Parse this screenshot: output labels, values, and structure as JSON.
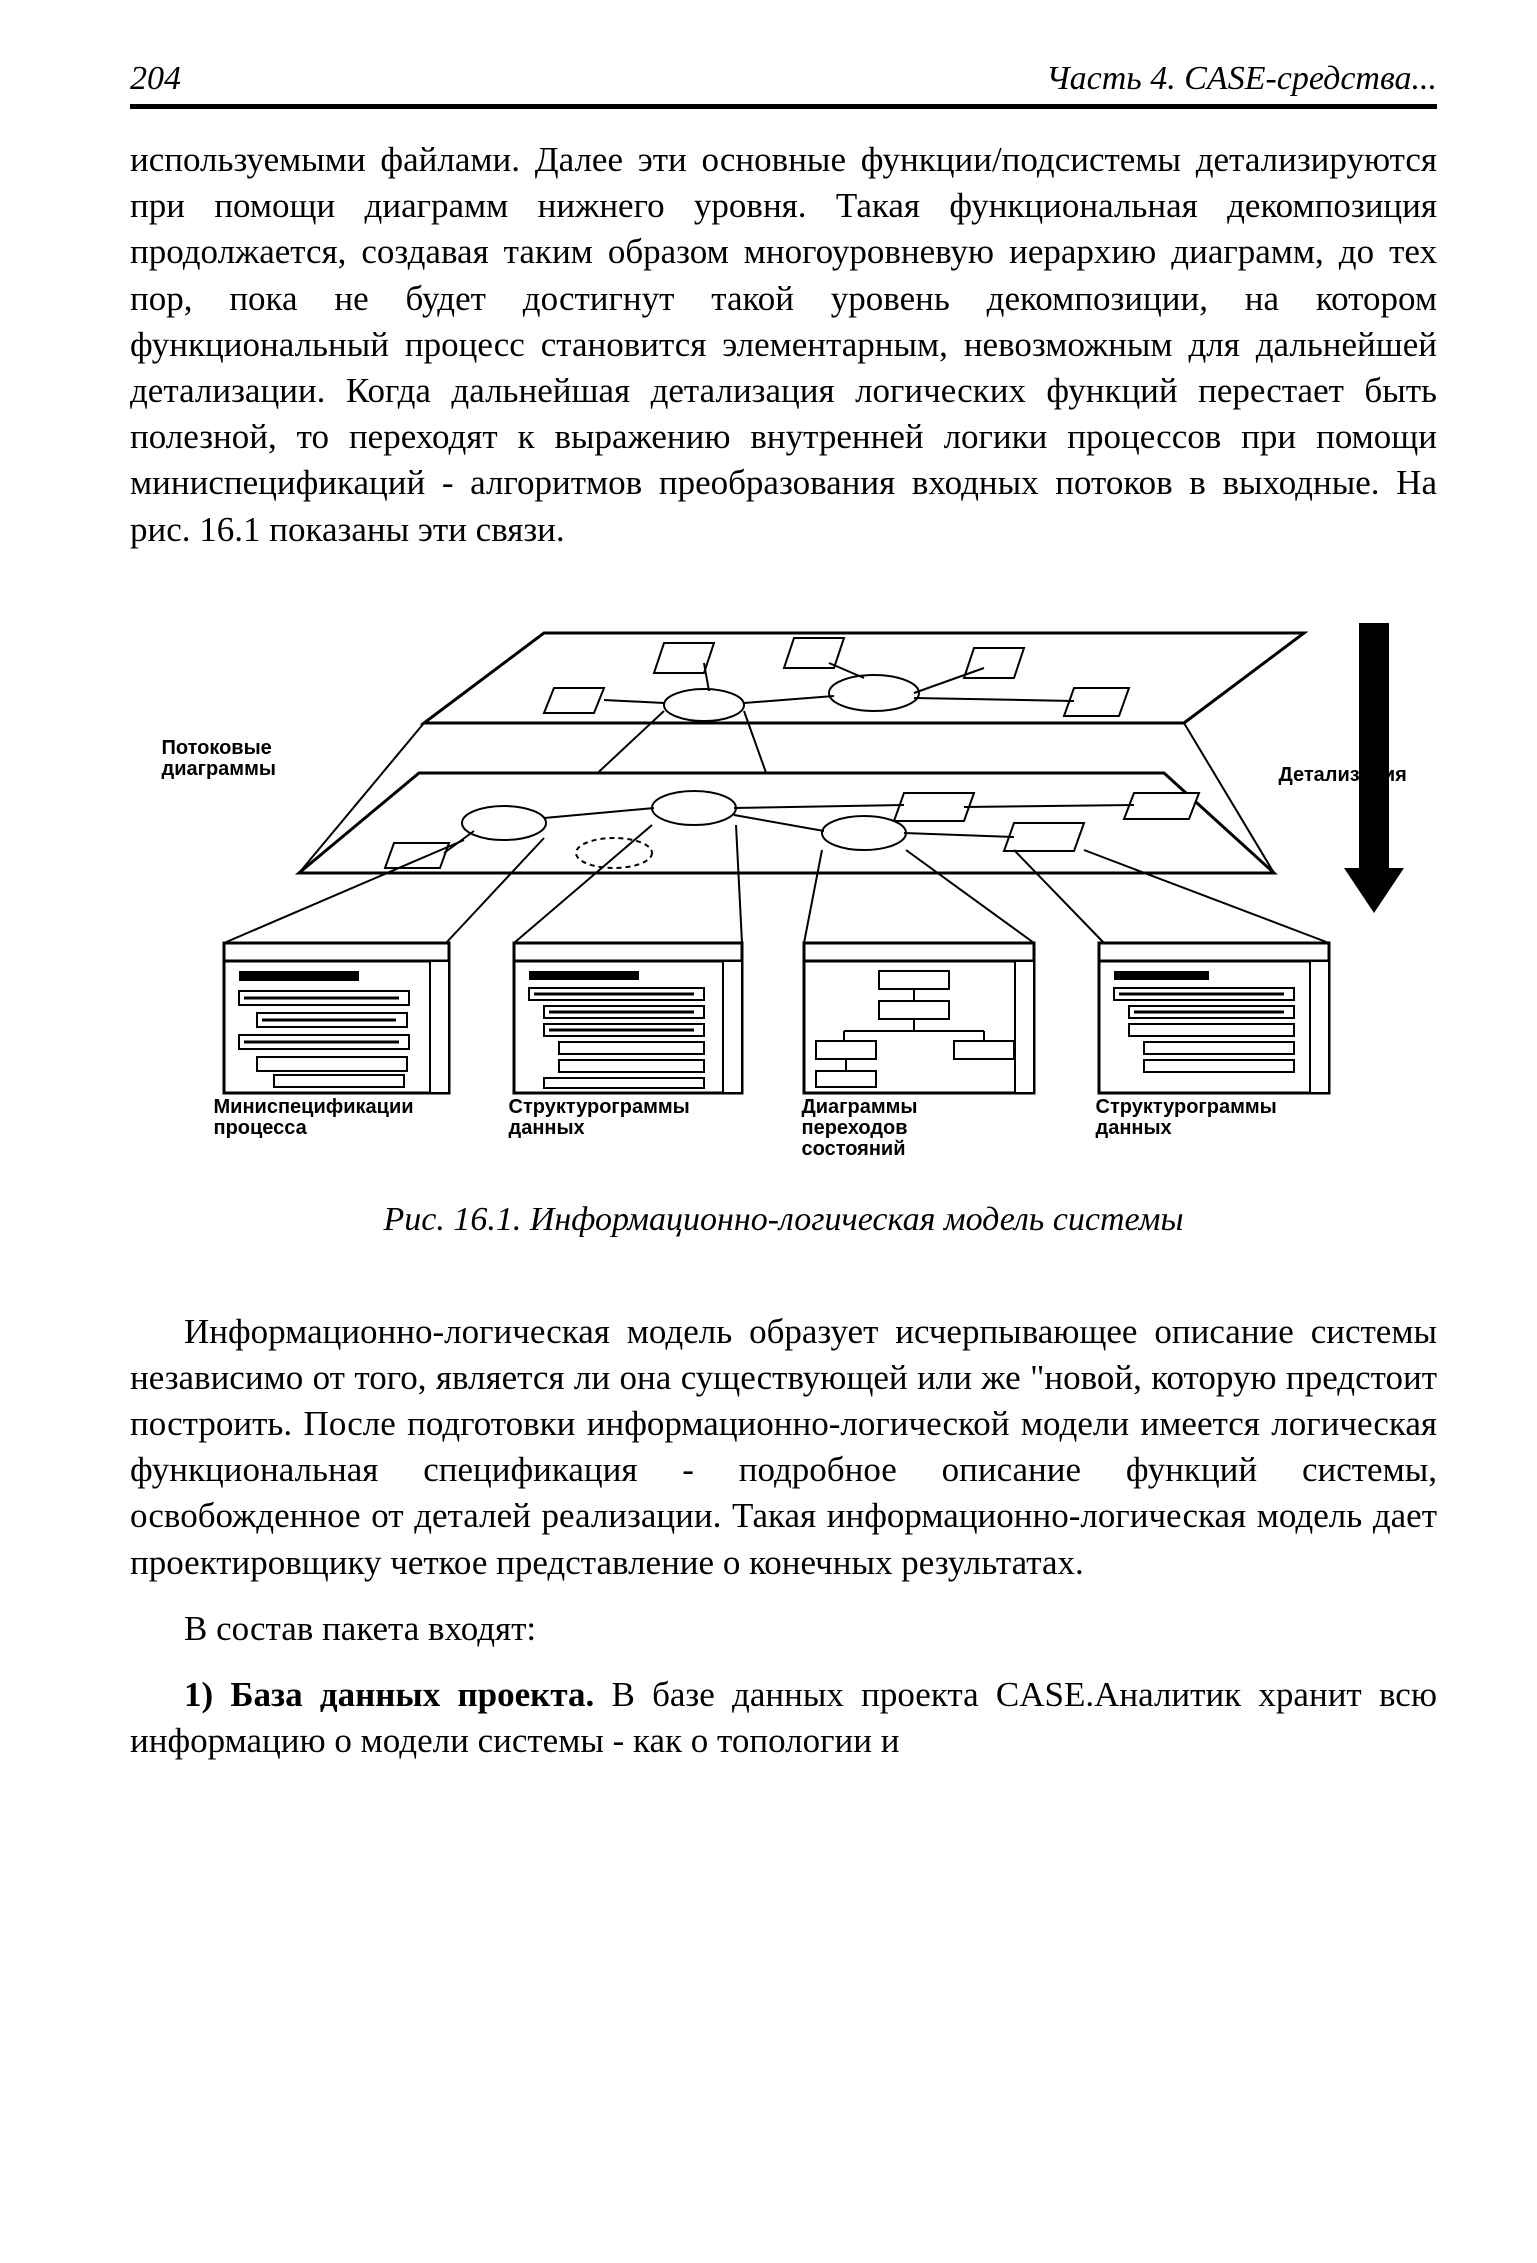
{
  "page_number": "204",
  "header_right": "Часть 4. CASE-средства...",
  "para1": "используемыми файлами. Далее эти основные функции/подсистемы детализируются при помощи диаграмм нижнего уровня. Такая функциональная декомпозиция продолжается, создавая таким образом многоуровневую иерархию диаграмм, до тех пор, пока не будет достигнут такой уровень декомпозиции, на котором функциональный процесс становится элементарным, невозможным для дальнейшей детализации. Когда дальнейшая детализация логических функций перестает быть полезной, то переходят к выражению внутренней логики процессов при помощи миниспецификаций - алгоритмов преобразования входных потоков в выходные. На рис. 16.1 показаны эти связи.",
  "figure_caption": "Рис. 16.1. Информационно-логическая модель системы",
  "para2": "Информационно-логическая модель образует исчерпывающее описание системы независимо от того, является ли она существующей или же \"новой, которую предстоит построить. После подготовки информационно-логической модели имеется логическая функциональная спецификация - подробное описание функций системы, освобожденное от деталей реализации. Такая информационно-логическая модель дает проектировщику четкое представление о конечных результатах.",
  "para3": "В состав пакета входят:",
  "para4_bold": "1) База данных проекта.",
  "para4_rest": " В базе данных проекта CASE.Аналитик хранит всю информацию о модели системы - как о топологии и",
  "labels": {
    "flow_diagrams": "Потоковые\nдиаграммы",
    "detail": "Детализация",
    "minispec": "Миниспецификации\nпроцесса",
    "struct1": "Структурограммы\nданных",
    "state": "Диаграммы\nпереходов\nсостояний",
    "struct2": "Структурограммы\nданных"
  },
  "colors": {
    "stroke": "#000000",
    "fill": "#ffffff"
  }
}
